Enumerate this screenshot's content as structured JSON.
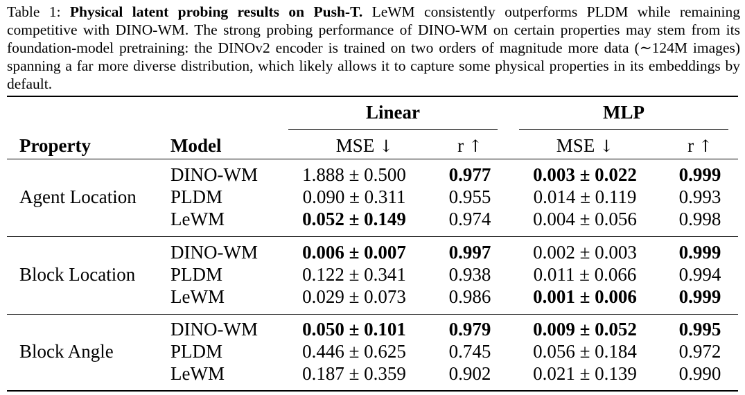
{
  "caption": {
    "label": "Table 1:",
    "title": "Physical latent probing results on Push-T.",
    "body": "LeWM consistently outperforms PLDM while remaining competitive with DINO-WM. The strong probing performance of DINO-WM on certain properties may stem from its foundation-model pretraining: the DINOv2 encoder is trained on two orders of magnitude more data (∼124M images) spanning a far more diverse distribution, which likely allows it to capture some physical properties in its embeddings by default."
  },
  "table": {
    "group_headers": [
      "Linear",
      "MLP"
    ],
    "col_headers": {
      "property": "Property",
      "model": "Model",
      "mse": "MSE",
      "r": "r",
      "mse_arrow": "↓",
      "r_arrow": "↑"
    },
    "sections": [
      {
        "property": "Agent Location",
        "rows": [
          {
            "model": "DINO-WM",
            "lin_mse": "1.888 ± 0.500",
            "lin_mse_bold": false,
            "lin_r": "0.977",
            "lin_r_bold": true,
            "mlp_mse": "0.003 ± 0.022",
            "mlp_mse_bold": true,
            "mlp_r": "0.999",
            "mlp_r_bold": true
          },
          {
            "model": "PLDM",
            "lin_mse": "0.090 ± 0.311",
            "lin_mse_bold": false,
            "lin_r": "0.955",
            "lin_r_bold": false,
            "mlp_mse": "0.014 ± 0.119",
            "mlp_mse_bold": false,
            "mlp_r": "0.993",
            "mlp_r_bold": false
          },
          {
            "model": "LeWM",
            "lin_mse": "0.052 ± 0.149",
            "lin_mse_bold": true,
            "lin_r": "0.974",
            "lin_r_bold": false,
            "mlp_mse": "0.004 ± 0.056",
            "mlp_mse_bold": false,
            "mlp_r": "0.998",
            "mlp_r_bold": false
          }
        ]
      },
      {
        "property": "Block Location",
        "rows": [
          {
            "model": "DINO-WM",
            "lin_mse": "0.006 ± 0.007",
            "lin_mse_bold": true,
            "lin_r": "0.997",
            "lin_r_bold": true,
            "mlp_mse": "0.002 ± 0.003",
            "mlp_mse_bold": false,
            "mlp_r": "0.999",
            "mlp_r_bold": true
          },
          {
            "model": "PLDM",
            "lin_mse": "0.122 ± 0.341",
            "lin_mse_bold": false,
            "lin_r": "0.938",
            "lin_r_bold": false,
            "mlp_mse": "0.011 ± 0.066",
            "mlp_mse_bold": false,
            "mlp_r": "0.994",
            "mlp_r_bold": false
          },
          {
            "model": "LeWM",
            "lin_mse": "0.029 ± 0.073",
            "lin_mse_bold": false,
            "lin_r": "0.986",
            "lin_r_bold": false,
            "mlp_mse": "0.001 ± 0.006",
            "mlp_mse_bold": true,
            "mlp_r": "0.999",
            "mlp_r_bold": true
          }
        ]
      },
      {
        "property": "Block Angle",
        "rows": [
          {
            "model": "DINO-WM",
            "lin_mse": "0.050 ± 0.101",
            "lin_mse_bold": true,
            "lin_r": "0.979",
            "lin_r_bold": true,
            "mlp_mse": "0.009 ± 0.052",
            "mlp_mse_bold": true,
            "mlp_r": "0.995",
            "mlp_r_bold": true
          },
          {
            "model": "PLDM",
            "lin_mse": "0.446 ± 0.625",
            "lin_mse_bold": false,
            "lin_r": "0.745",
            "lin_r_bold": false,
            "mlp_mse": "0.056 ± 0.184",
            "mlp_mse_bold": false,
            "mlp_r": "0.972",
            "mlp_r_bold": false
          },
          {
            "model": "LeWM",
            "lin_mse": "0.187 ± 0.359",
            "lin_mse_bold": false,
            "lin_r": "0.902",
            "lin_r_bold": false,
            "mlp_mse": "0.021 ± 0.139",
            "mlp_mse_bold": false,
            "mlp_r": "0.990",
            "mlp_r_bold": false
          }
        ]
      }
    ]
  }
}
